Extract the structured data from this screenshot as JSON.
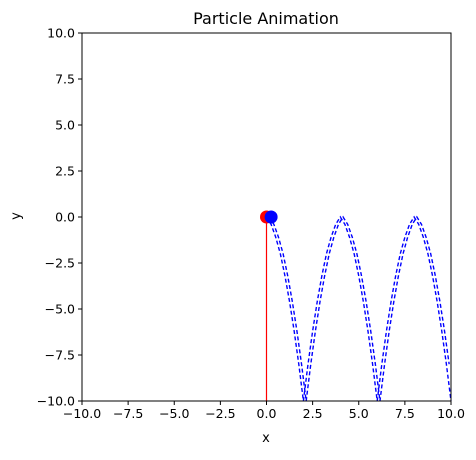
{
  "chart_data": {
    "type": "line",
    "title": "Particle Animation",
    "xlabel": "x",
    "ylabel": "y",
    "xlim": [
      -10,
      10
    ],
    "ylim": [
      -10,
      10
    ],
    "x_ticks": [
      -10.0,
      -7.5,
      -5.0,
      -2.5,
      0.0,
      2.5,
      5.0,
      7.5,
      10.0
    ],
    "y_ticks": [
      10.0,
      7.5,
      5.0,
      2.5,
      0.0,
      -2.5,
      -5.0,
      -7.5,
      -10.0
    ],
    "x_tick_labels": [
      "−10.0",
      "−7.5",
      "−5.0",
      "−2.5",
      "0.0",
      "2.5",
      "5.0",
      "7.5",
      "10.0"
    ],
    "y_tick_labels": [
      "10.0",
      "7.5",
      "5.0",
      "2.5",
      "0.0",
      "−2.5",
      "−5.0",
      "−7.5",
      "−10.0"
    ],
    "grid": false,
    "series": [
      {
        "color": "#0000ff",
        "style": "dashed",
        "x": [
          0.0,
          0.25,
          0.5,
          0.75,
          1.0,
          1.25,
          1.5,
          1.75,
          1.9,
          1.95,
          2.0,
          2.05,
          2.1,
          2.25,
          2.5,
          2.75,
          3.0,
          3.25,
          3.5,
          3.75,
          4.0,
          4.25,
          4.5,
          4.75,
          5.0,
          5.25,
          5.5,
          5.75,
          5.9,
          5.95,
          6.0,
          6.05,
          6.1,
          6.25,
          6.5,
          6.75,
          7.0,
          7.25,
          7.5,
          7.75,
          8.0,
          8.25,
          8.5,
          8.75,
          9.0,
          9.25,
          9.5,
          9.75,
          10.0
        ],
        "y": [
          0.0,
          -0.4,
          -1.1,
          -2.0,
          -3.2,
          -4.6,
          -6.2,
          -8.0,
          -9.2,
          -9.6,
          -10.0,
          -9.6,
          -9.2,
          -8.0,
          -6.2,
          -4.6,
          -3.2,
          -2.0,
          -1.1,
          -0.4,
          0.0,
          -0.4,
          -1.1,
          -2.0,
          -3.2,
          -4.6,
          -6.2,
          -8.0,
          -9.2,
          -9.6,
          -10.0,
          -9.6,
          -9.2,
          -8.0,
          -6.2,
          -4.6,
          -3.2,
          -2.0,
          -1.1,
          -0.4,
          0.0,
          -0.4,
          -1.1,
          -2.0,
          -3.2,
          -4.6,
          -6.2,
          -8.0,
          -10.0
        ]
      },
      {
        "color": "#0000ff",
        "style": "dashed",
        "x": [
          0.15,
          0.4,
          0.65,
          0.9,
          1.15,
          1.4,
          1.65,
          1.9,
          2.05,
          2.1,
          2.15,
          2.2,
          2.25,
          2.4,
          2.65,
          2.9,
          3.15,
          3.4,
          3.65,
          3.9,
          4.15,
          4.4,
          4.65,
          4.9,
          5.15,
          5.4,
          5.65,
          5.9,
          6.05,
          6.1,
          6.15,
          6.2,
          6.25,
          6.4,
          6.65,
          6.9,
          7.15,
          7.4,
          7.65,
          7.9,
          8.15,
          8.4,
          8.65,
          8.9,
          9.15,
          9.4,
          9.65,
          9.9
        ],
        "y": [
          0.0,
          -0.4,
          -1.1,
          -2.0,
          -3.2,
          -4.6,
          -6.2,
          -8.0,
          -9.2,
          -9.6,
          -10.0,
          -9.6,
          -9.2,
          -8.0,
          -6.2,
          -4.6,
          -3.2,
          -2.0,
          -1.1,
          -0.4,
          0.0,
          -0.4,
          -1.1,
          -2.0,
          -3.2,
          -4.6,
          -6.2,
          -8.0,
          -9.2,
          -9.6,
          -10.0,
          -9.6,
          -9.2,
          -8.0,
          -6.2,
          -4.6,
          -3.2,
          -2.0,
          -1.1,
          -0.4,
          0.0,
          -0.4,
          -1.1,
          -2.0,
          -3.2,
          -4.6,
          -6.2,
          -8.0
        ]
      },
      {
        "color": "#ff0000",
        "style": "solid",
        "x": [
          0.0,
          0.0
        ],
        "y": [
          0.0,
          -10.0
        ]
      }
    ],
    "points": [
      {
        "color": "#ff0000",
        "x": 0.0,
        "y": 0.0
      },
      {
        "color": "#0000ff",
        "x": 0.25,
        "y": 0.0
      }
    ]
  }
}
